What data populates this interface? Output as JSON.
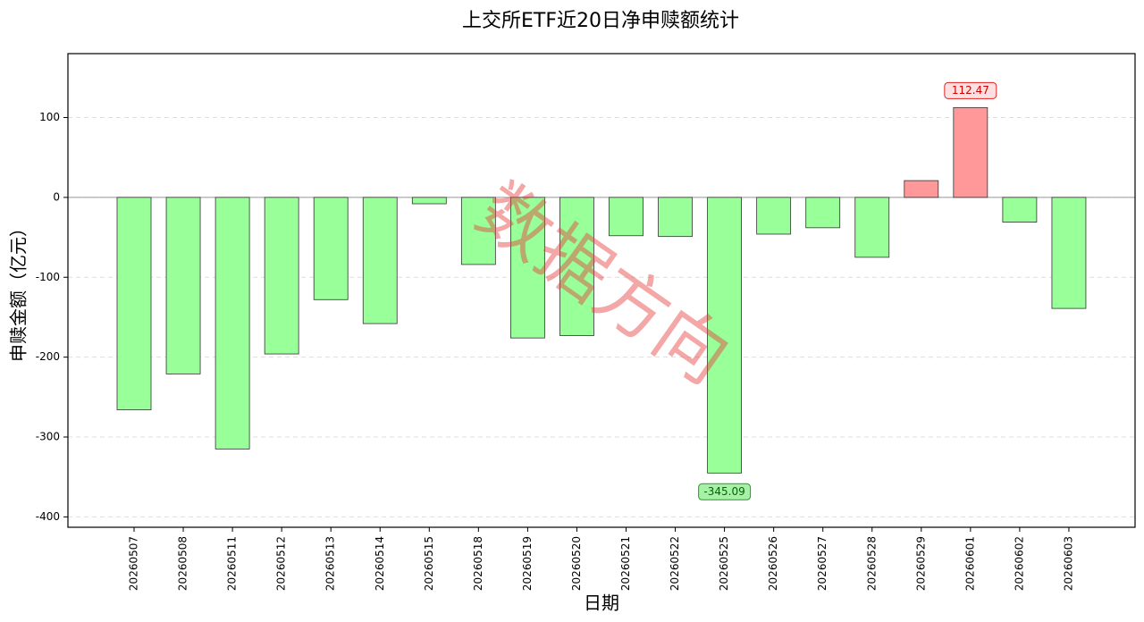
{
  "chart_data": {
    "type": "bar",
    "title": "上交所ETF近20日净申赎额统计",
    "xlabel": "日期",
    "ylabel": "申赎金额（亿元）",
    "watermark": "数据方向",
    "categories": [
      "20260507",
      "20260508",
      "20260511",
      "20260512",
      "20260513",
      "20260514",
      "20260515",
      "20260518",
      "20260519",
      "20260520",
      "20260521",
      "20260522",
      "20260525",
      "20260526",
      "20260527",
      "20260528",
      "20260529",
      "20260601",
      "20260602",
      "20260603"
    ],
    "values": [
      -266,
      -221,
      -315,
      -196,
      -128,
      -158,
      -8,
      -84,
      -176,
      -173,
      -48,
      -49,
      -345.09,
      -46,
      -38,
      -75,
      21,
      112.47,
      -31,
      -139
    ],
    "positive_color": "#ff9999",
    "negative_color": "#99ff99",
    "ylim": [
      -413,
      180
    ],
    "yticks": [
      -400,
      -300,
      -200,
      -100,
      0,
      100
    ],
    "grid": true
  }
}
